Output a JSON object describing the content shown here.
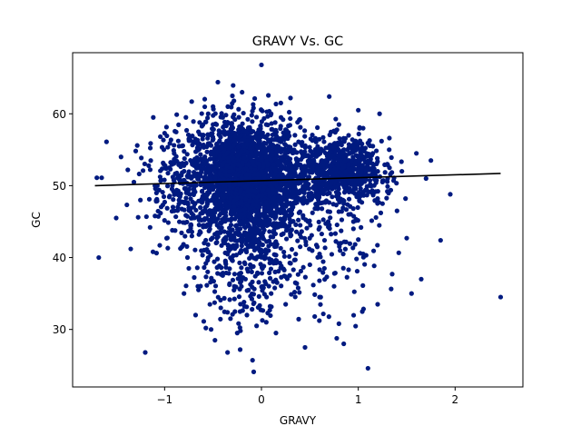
{
  "chart_data": {
    "type": "scatter",
    "title": "GRAVY Vs. GC",
    "xlabel": "GRAVY",
    "ylabel": "GC",
    "xlim": [
      -1.95,
      2.7
    ],
    "ylim": [
      22,
      68.5
    ],
    "xticks": [
      -1,
      0,
      1,
      2
    ],
    "xtick_labels": [
      "−1",
      "0",
      "1",
      "2"
    ],
    "yticks": [
      30,
      40,
      50,
      60
    ],
    "ytick_labels": [
      "30",
      "40",
      "50",
      "60"
    ],
    "grid": false,
    "legend": "none",
    "series": [
      {
        "marker_color": "#001a80",
        "points": [
          [
            -1.7,
            51.1
          ],
          [
            -1.65,
            51.1
          ],
          [
            -1.68,
            40.0
          ],
          [
            -1.6,
            56.1
          ],
          [
            -1.5,
            45.5
          ],
          [
            -1.45,
            54.0
          ],
          [
            -1.38,
            52.2
          ],
          [
            -1.35,
            41.2
          ],
          [
            -1.25,
            48.0
          ],
          [
            -1.2,
            26.8
          ],
          [
            -1.15,
            44.2
          ],
          [
            -1.12,
            40.8
          ],
          [
            -1.1,
            50.0
          ],
          [
            -1.05,
            41.7
          ],
          [
            -1.0,
            57.3
          ],
          [
            -0.95,
            52.5
          ],
          [
            -0.92,
            43.8
          ],
          [
            -0.9,
            46.5
          ],
          [
            -0.85,
            55.5
          ],
          [
            -0.82,
            41.5
          ],
          [
            -0.8,
            35.0
          ],
          [
            -0.78,
            59.5
          ],
          [
            -0.75,
            38.5
          ],
          [
            -0.72,
            61.7
          ],
          [
            -0.7,
            47.0
          ],
          [
            -0.68,
            32.0
          ],
          [
            -0.65,
            35.5
          ],
          [
            -0.6,
            44.5
          ],
          [
            -0.55,
            40.0
          ],
          [
            -0.52,
            30.0
          ],
          [
            -0.5,
            61.0
          ],
          [
            -0.48,
            28.5
          ],
          [
            -0.45,
            64.4
          ],
          [
            -0.42,
            33.0
          ],
          [
            -0.4,
            37.5
          ],
          [
            -0.35,
            26.8
          ],
          [
            -0.32,
            31.5
          ],
          [
            -0.3,
            62.5
          ],
          [
            -0.28,
            36.0
          ],
          [
            -0.25,
            29.5
          ],
          [
            -0.22,
            27.2
          ],
          [
            -0.2,
            63.0
          ],
          [
            -0.18,
            33.8
          ],
          [
            -0.15,
            32.0
          ],
          [
            -0.1,
            38.0
          ],
          [
            -0.08,
            24.1
          ],
          [
            -0.05,
            30.5
          ],
          [
            0.0,
            66.8
          ],
          [
            0.05,
            31.0
          ],
          [
            0.1,
            35.0
          ],
          [
            0.15,
            29.5
          ],
          [
            0.2,
            61.5
          ],
          [
            0.25,
            33.5
          ],
          [
            0.3,
            62.2
          ],
          [
            0.35,
            36.5
          ],
          [
            0.4,
            44.5
          ],
          [
            0.45,
            27.5
          ],
          [
            0.5,
            48.0
          ],
          [
            0.55,
            31.8
          ],
          [
            0.6,
            34.5
          ],
          [
            0.65,
            38.5
          ],
          [
            0.7,
            62.4
          ],
          [
            0.75,
            36.0
          ],
          [
            0.8,
            30.8
          ],
          [
            0.82,
            42.0
          ],
          [
            0.85,
            28.0
          ],
          [
            0.9,
            38.3
          ],
          [
            0.95,
            45.0
          ],
          [
            1.0,
            60.5
          ],
          [
            1.05,
            40.5
          ],
          [
            1.1,
            24.6
          ],
          [
            1.15,
            54.5
          ],
          [
            1.2,
            33.5
          ],
          [
            1.22,
            60.0
          ],
          [
            1.25,
            47.5
          ],
          [
            1.3,
            53.0
          ],
          [
            1.35,
            37.7
          ],
          [
            1.4,
            46.5
          ],
          [
            1.45,
            52.0
          ],
          [
            1.5,
            42.7
          ],
          [
            1.55,
            35.0
          ],
          [
            1.6,
            54.5
          ],
          [
            1.65,
            37.0
          ],
          [
            1.7,
            51.0
          ],
          [
            1.75,
            53.5
          ],
          [
            1.85,
            42.4
          ],
          [
            1.95,
            48.8
          ],
          [
            2.47,
            34.5
          ],
          [
            0.35,
            47.8
          ],
          [
            0.4,
            41.5
          ],
          [
            0.5,
            39.0
          ],
          [
            0.6,
            40.5
          ],
          [
            0.3,
            43.0
          ],
          [
            0.2,
            50.5
          ],
          [
            0.15,
            46.0
          ],
          [
            0.25,
            57.8
          ],
          [
            -0.6,
            57.0
          ],
          [
            -0.65,
            53.5
          ],
          [
            -0.7,
            49.5
          ],
          [
            -0.8,
            52.8
          ],
          [
            -0.9,
            50.5
          ],
          [
            -0.75,
            56.5
          ],
          [
            -0.5,
            58.5
          ],
          [
            -0.55,
            60.0
          ],
          [
            -0.4,
            59.5
          ],
          [
            0.1,
            60.0
          ],
          [
            0.05,
            58.5
          ],
          [
            -0.1,
            59.8
          ],
          [
            0.9,
            57.0
          ],
          [
            1.05,
            58.0
          ],
          [
            0.8,
            58.5
          ],
          [
            1.15,
            55.5
          ],
          [
            1.25,
            50.5
          ],
          [
            1.3,
            49.2
          ],
          [
            1.2,
            48.2
          ],
          [
            0.9,
            46.0
          ],
          [
            0.95,
            44.0
          ],
          [
            1.0,
            42.5
          ],
          [
            0.85,
            47.5
          ]
        ],
        "clusters": [
          {
            "cx": -0.17,
            "cy": 51.5,
            "sx": 0.28,
            "sy": 3.8,
            "n": 1900
          },
          {
            "cx": -0.15,
            "cy": 46.0,
            "sx": 0.22,
            "sy": 4.5,
            "n": 450
          },
          {
            "cx": -0.12,
            "cy": 38.0,
            "sx": 0.3,
            "sy": 4.0,
            "n": 170
          },
          {
            "cx": 0.85,
            "cy": 52.0,
            "sx": 0.2,
            "sy": 2.2,
            "n": 650
          },
          {
            "cx": 0.35,
            "cy": 51.0,
            "sx": 0.22,
            "sy": 3.0,
            "n": 220
          },
          {
            "cx": 0.65,
            "cy": 42.0,
            "sx": 0.3,
            "sy": 5.5,
            "n": 130
          },
          {
            "cx": -0.75,
            "cy": 50.0,
            "sx": 0.25,
            "sy": 4.0,
            "n": 220
          }
        ]
      }
    ],
    "trendline": {
      "color": "#000000",
      "x": [
        -1.72,
        2.47
      ],
      "y": [
        50.0,
        51.7
      ]
    }
  }
}
